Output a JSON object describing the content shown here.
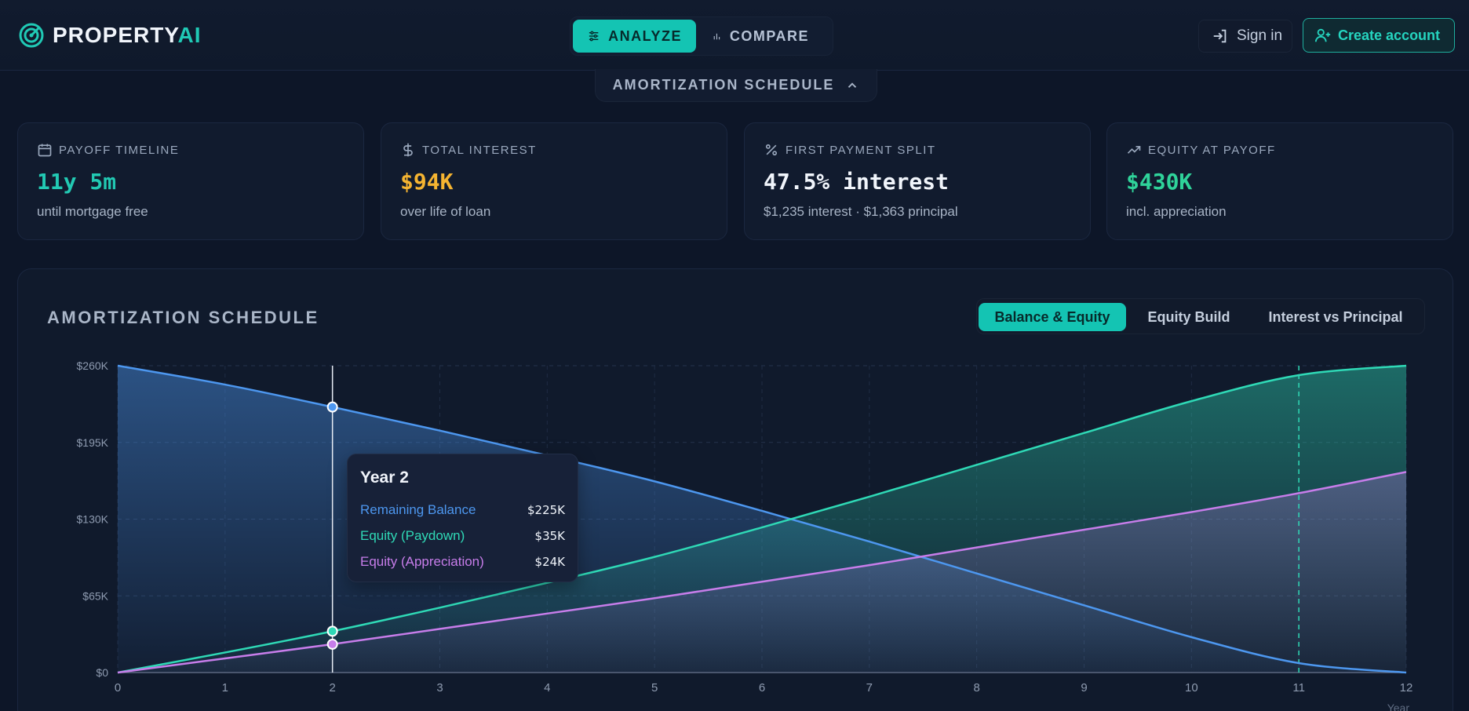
{
  "brand": {
    "name_main": "PROPERTY",
    "name_accent": "AI"
  },
  "nav": {
    "analyze": "ANALYZE",
    "compare": "COMPARE"
  },
  "auth": {
    "sign_in": "Sign in",
    "create_account": "Create account"
  },
  "schedule_toggle": "AMORTIZATION SCHEDULE",
  "cards": [
    {
      "label": "PAYOFF TIMELINE",
      "value": "11y 5m",
      "sub": "until mortgage free",
      "icon": "calendar-icon",
      "color": "#22c9b3"
    },
    {
      "label": "TOTAL INTEREST",
      "value": "$94K",
      "sub": "over life of loan",
      "icon": "dollar-icon",
      "color": "#f5b431"
    },
    {
      "label": "FIRST PAYMENT SPLIT",
      "value": "47.5% interest",
      "sub": "$1,235 interest · $1,363 principal",
      "icon": "percent-icon",
      "color": "#f1f5fb"
    },
    {
      "label": "EQUITY AT PAYOFF",
      "value": "$430K",
      "sub": "incl. appreciation",
      "icon": "trending-up-icon",
      "color": "#2fd39a"
    }
  ],
  "chart_panel": {
    "title": "AMORTIZATION SCHEDULE",
    "tabs": [
      "Balance & Equity",
      "Equity Build",
      "Interest vs Principal"
    ],
    "active_tab": 0
  },
  "tooltip": {
    "title": "Year 2",
    "rows": [
      {
        "label": "Remaining Balance",
        "value": "$225K",
        "color": "#4d97ef"
      },
      {
        "label": "Equity (Paydown)",
        "value": "$35K",
        "color": "#2fd9b6"
      },
      {
        "label": "Equity (Appreciation)",
        "value": "$24K",
        "color": "#c77dea"
      }
    ]
  },
  "chart_data": {
    "type": "area",
    "x": [
      0,
      1,
      2,
      3,
      4,
      5,
      6,
      7,
      8,
      9,
      10,
      11,
      12
    ],
    "x_tick_labels": [
      "0",
      "1",
      "2",
      "3",
      "4",
      "5",
      "6",
      "7",
      "8",
      "9",
      "10",
      "11",
      "12"
    ],
    "xlabel": "Year",
    "ylabel": "",
    "y_tick_labels": [
      "$0",
      "$65K",
      "$130K",
      "$195K",
      "$260K"
    ],
    "y_ticks": [
      0,
      65000,
      130000,
      195000,
      260000
    ],
    "ylim": [
      0,
      260000
    ],
    "xlim": [
      0,
      12
    ],
    "grid": true,
    "hover_x": 2,
    "payoff_marker_x": 11,
    "series": [
      {
        "name": "Remaining Balance",
        "color": "#4d97ef",
        "values": [
          260000,
          244000,
          225000,
          205000,
          184000,
          162000,
          137000,
          111000,
          84000,
          57000,
          30000,
          8000,
          0
        ]
      },
      {
        "name": "Equity (Paydown)",
        "color": "#2fd9b6",
        "values": [
          0,
          17000,
          35000,
          55000,
          76000,
          98000,
          123000,
          149000,
          176000,
          203000,
          230000,
          252000,
          260000
        ]
      },
      {
        "name": "Equity (Appreciation)",
        "color": "#c77dea",
        "values": [
          0,
          12000,
          24000,
          37000,
          50000,
          63000,
          77000,
          91000,
          106000,
          121000,
          136000,
          152000,
          170000
        ]
      }
    ]
  }
}
